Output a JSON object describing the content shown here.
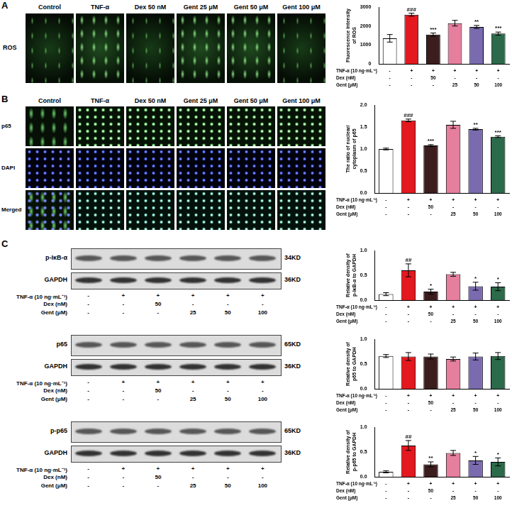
{
  "panel_labels": [
    "A",
    "B",
    "C"
  ],
  "images": {
    "columns": [
      "Control",
      "TNF-α",
      "Dex 50 nM",
      "Gent 25 μM",
      "Gent 50 μM",
      "Gent 100 μM"
    ],
    "A_rows": [
      "ROS"
    ],
    "B_rows": [
      "p65",
      "DAPI",
      "Merged"
    ]
  },
  "treatments": {
    "rows": [
      {
        "label": "TNF-α (10 ng·mL⁻¹)",
        "cells": [
          "-",
          "+",
          "+",
          "+",
          "+",
          "+"
        ]
      },
      {
        "label": "Dex (nM)",
        "cells": [
          "-",
          "-",
          "50",
          "-",
          "-",
          "-"
        ]
      },
      {
        "label": "Gent (μM)",
        "cells": [
          "-",
          "-",
          "-",
          "25",
          "50",
          "100"
        ]
      }
    ]
  },
  "blots": [
    {
      "strips": [
        {
          "label": "p-IκB-α",
          "size": "34KD"
        },
        {
          "label": "GAPDH",
          "size": "36KD"
        }
      ]
    },
    {
      "strips": [
        {
          "label": "p65",
          "size": "65KD"
        },
        {
          "label": "GAPDH",
          "size": "36KD"
        }
      ]
    },
    {
      "strips": [
        {
          "label": "p-p65",
          "size": "65KD"
        },
        {
          "label": "GAPDH",
          "size": "36KD"
        }
      ]
    }
  ],
  "chart_data": [
    {
      "type": "bar",
      "y_label": [
        "Fluorescence intensity",
        "of ROS"
      ],
      "categories": [
        null,
        null,
        null,
        null,
        null,
        null
      ],
      "values": [
        1350,
        2600,
        1550,
        2150,
        1950,
        1600
      ],
      "errors": [
        200,
        80,
        80,
        150,
        80,
        80
      ],
      "annotations": [
        null,
        "###",
        "***",
        null,
        "**",
        "***"
      ],
      "colors": [
        "#ffffff",
        "#e3191f",
        "#3b1d1d",
        "#e57f9d",
        "#7a6bb0",
        "#2b6a4a"
      ],
      "ylim": [
        0,
        3000
      ],
      "yticks": [
        0,
        1000,
        2000,
        3000
      ],
      "grid": false
    },
    {
      "type": "bar",
      "y_label": [
        "The ratio of nuclear/",
        "cytoplasm of p65"
      ],
      "categories": [
        null,
        null,
        null,
        null,
        null,
        null
      ],
      "values": [
        1.0,
        1.65,
        1.08,
        1.55,
        1.45,
        1.28
      ],
      "errors": [
        0.02,
        0.03,
        0.02,
        0.08,
        0.02,
        0.02
      ],
      "annotations": [
        null,
        "###",
        "***",
        null,
        "**",
        "***"
      ],
      "colors": [
        "#ffffff",
        "#e3191f",
        "#3b1d1d",
        "#e57f9d",
        "#7a6bb0",
        "#2b6a4a"
      ],
      "ylim": [
        0,
        2
      ],
      "yticks": [
        {
          "value": 0,
          "label": "0.0"
        },
        0.5,
        {
          "value": 1,
          "label": "1.0"
        },
        1.5,
        {
          "value": 2,
          "label": "2.0"
        }
      ],
      "grid": false
    },
    {
      "type": "bar",
      "y_label": [
        "Relative density of",
        "p-IκB-α to GAPDH"
      ],
      "categories": [
        null,
        null,
        null,
        null,
        null,
        null
      ],
      "values": [
        0.12,
        0.6,
        0.17,
        0.52,
        0.28,
        0.27
      ],
      "errors": [
        0.03,
        0.13,
        0.05,
        0.04,
        0.08,
        0.08
      ],
      "annotations": [
        null,
        "##",
        "*",
        null,
        "*",
        "*"
      ],
      "colors": [
        "#ffffff",
        "#e3191f",
        "#3b1d1d",
        "#e57f9d",
        "#7a6bb0",
        "#2b6a4a"
      ],
      "ylim": [
        0,
        1
      ],
      "yticks": [
        {
          "value": 0,
          "label": "0.0"
        },
        0.5,
        {
          "value": 1,
          "label": "1.0"
        }
      ],
      "grid": false
    },
    {
      "type": "bar",
      "y_label": [
        "Relative density of",
        "p65 to GAPDH"
      ],
      "categories": [
        null,
        null,
        null,
        null,
        null,
        null
      ],
      "values": [
        0.66,
        0.65,
        0.65,
        0.6,
        0.65,
        0.66
      ],
      "errors": [
        0.03,
        0.08,
        0.05,
        0.04,
        0.07,
        0.07
      ],
      "colors": [
        "#ffffff",
        "#e3191f",
        "#3b1d1d",
        "#e57f9d",
        "#7a6bb0",
        "#2b6a4a"
      ],
      "ylim": [
        0,
        1
      ],
      "yticks": [
        {
          "value": 0,
          "label": "0.0"
        },
        0.5,
        {
          "value": 1,
          "label": "1.0"
        }
      ],
      "grid": false
    },
    {
      "type": "bar",
      "y_label": [
        "Relative density of",
        "p-p65 to GAPDH"
      ],
      "categories": [
        null,
        null,
        null,
        null,
        null,
        null
      ],
      "values": [
        0.1,
        0.63,
        0.25,
        0.48,
        0.33,
        0.3
      ],
      "errors": [
        0.02,
        0.1,
        0.05,
        0.05,
        0.08,
        0.08
      ],
      "annotations": [
        null,
        "##",
        "**",
        null,
        "*",
        "*"
      ],
      "colors": [
        "#ffffff",
        "#e3191f",
        "#3b1d1d",
        "#e57f9d",
        "#7a6bb0",
        "#2b6a4a"
      ],
      "ylim": [
        0,
        1
      ],
      "yticks": [
        {
          "value": 0,
          "label": "0.0"
        },
        0.5,
        {
          "value": 1,
          "label": "1.0"
        }
      ],
      "grid": false
    }
  ]
}
